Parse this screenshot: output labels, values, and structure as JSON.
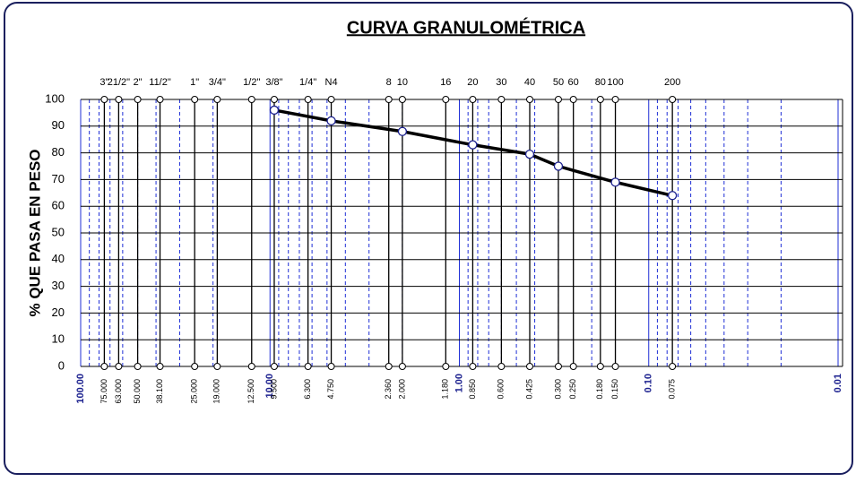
{
  "chart_data": {
    "type": "line",
    "title": "CURVA GRANULOMÉTRICA",
    "ylabel": "% QUE PASA EN PESO",
    "xlog": true,
    "xlim": [
      100,
      0.01
    ],
    "ylim": [
      0,
      100
    ],
    "yticks": [
      0,
      10,
      20,
      30,
      40,
      50,
      60,
      70,
      80,
      90,
      100
    ],
    "xticks": [
      {
        "value": 100,
        "label": "100.00"
      },
      {
        "value": 10,
        "label": "10.00"
      },
      {
        "value": 1,
        "label": "1.00"
      },
      {
        "value": 0.1,
        "label": "0.10"
      },
      {
        "value": 0.01,
        "label": "0.01"
      }
    ],
    "xminor": [
      90,
      80,
      70,
      60,
      50,
      40,
      30,
      20,
      9,
      8,
      7,
      6,
      5,
      4,
      3,
      2,
      0.9,
      0.8,
      0.7,
      0.6,
      0.5,
      0.4,
      0.3,
      0.2,
      0.09,
      0.08,
      0.07,
      0.06,
      0.05,
      0.04,
      0.03,
      0.02
    ],
    "sieve_names": [
      "3\"",
      "21/2\"",
      "2\"",
      "11/2\"",
      "1\"",
      "3/4\"",
      "1/2\"",
      "3/8\"",
      "1/4\"",
      "N4",
      "8",
      "10",
      "16",
      "20",
      "30",
      "40",
      "50",
      "60",
      "80",
      "100",
      "200"
    ],
    "sieves": [
      {
        "value": 75,
        "label": "75.000"
      },
      {
        "value": 63,
        "label": "63.000"
      },
      {
        "value": 50,
        "label": "50.000"
      },
      {
        "value": 38.1,
        "label": "38.100"
      },
      {
        "value": 25,
        "label": "25.000"
      },
      {
        "value": 19,
        "label": "19.000"
      },
      {
        "value": 12.5,
        "label": "12.500"
      },
      {
        "value": 9.5,
        "label": "9.500"
      },
      {
        "value": 6.3,
        "label": "6.300"
      },
      {
        "value": 4.75,
        "label": "4.750"
      },
      {
        "value": 2.36,
        "label": "2.360"
      },
      {
        "value": 2,
        "label": "2.000"
      },
      {
        "value": 1.18,
        "label": "1.180"
      },
      {
        "value": 0.85,
        "label": "0.850"
      },
      {
        "value": 0.6,
        "label": "0.600"
      },
      {
        "value": 0.425,
        "label": "0.425"
      },
      {
        "value": 0.3,
        "label": "0.300"
      },
      {
        "value": 0.25,
        "label": "0.250"
      },
      {
        "value": 0.18,
        "label": "0.180"
      },
      {
        "value": 0.15,
        "label": "0.150"
      },
      {
        "value": 0.075,
        "label": "0.075"
      }
    ],
    "series": [
      {
        "color": "#000000",
        "x": [
          9.5,
          4.75,
          2,
          0.85,
          0.425,
          0.3,
          0.15,
          0.075
        ],
        "values": [
          96,
          92,
          88,
          83,
          79.5,
          75,
          69,
          64
        ]
      }
    ],
    "grid": true
  }
}
